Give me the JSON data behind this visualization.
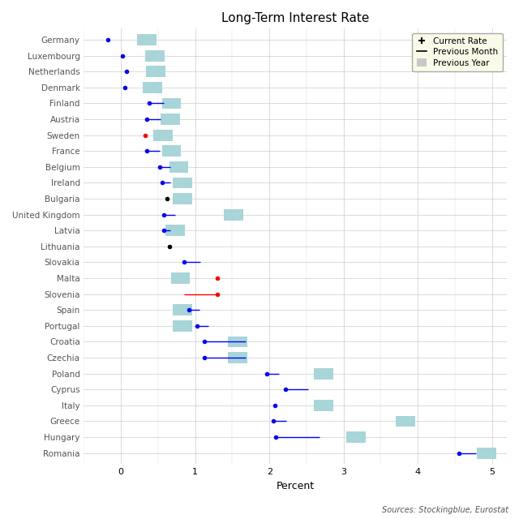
{
  "title": "Long-Term Interest Rate",
  "xlabel": "Percent",
  "source": "Sources: Stockingblue, Eurostat",
  "countries": [
    "Germany",
    "Luxembourg",
    "Netherlands",
    "Denmark",
    "Finland",
    "Austria",
    "Sweden",
    "France",
    "Belgium",
    "Ireland",
    "Bulgaria",
    "United Kingdom",
    "Latvia",
    "Lithuania",
    "Slovakia",
    "Malta",
    "Slovenia",
    "Spain",
    "Portugal",
    "Croatia",
    "Czechia",
    "Poland",
    "Cyprus",
    "Italy",
    "Greece",
    "Hungary",
    "Romania"
  ],
  "current_rate": [
    -0.18,
    0.02,
    0.07,
    0.05,
    0.38,
    0.35,
    0.32,
    0.35,
    0.52,
    0.55,
    0.62,
    0.58,
    0.58,
    0.65,
    0.85,
    1.3,
    1.3,
    0.92,
    1.02,
    1.12,
    1.12,
    1.97,
    2.22,
    2.07,
    2.05,
    2.08,
    4.55
  ],
  "prev_month": [
    -0.18,
    0.02,
    0.07,
    0.05,
    0.58,
    0.53,
    null,
    0.52,
    0.66,
    0.66,
    null,
    0.73,
    0.66,
    null,
    1.07,
    null,
    0.85,
    1.06,
    1.18,
    1.68,
    1.68,
    2.13,
    2.52,
    null,
    2.23,
    2.68,
    4.78
  ],
  "prev_year": [
    0.35,
    0.46,
    0.47,
    0.42,
    0.68,
    0.66,
    0.57,
    0.68,
    0.78,
    0.83,
    0.83,
    1.52,
    0.73,
    null,
    null,
    0.8,
    null,
    0.83,
    0.83,
    1.57,
    1.57,
    2.73,
    null,
    2.73,
    3.83,
    3.17,
    4.93
  ],
  "prev_year_pink": [
    false,
    false,
    false,
    false,
    false,
    false,
    false,
    false,
    false,
    false,
    false,
    false,
    false,
    false,
    true,
    false,
    true,
    false,
    false,
    false,
    false,
    false,
    true,
    false,
    false,
    false,
    false
  ],
  "dot_colors": [
    "blue",
    "blue",
    "blue",
    "blue",
    "blue",
    "blue",
    "red",
    "blue",
    "blue",
    "blue",
    "black",
    "blue",
    "blue",
    "black",
    "blue",
    "red",
    "red",
    "blue",
    "blue",
    "blue",
    "blue",
    "blue",
    "blue",
    "blue",
    "blue",
    "blue",
    "blue"
  ],
  "line_colors": [
    "blue",
    "blue",
    "blue",
    "blue",
    "blue",
    "blue",
    null,
    "blue",
    "blue",
    "blue",
    null,
    "blue",
    "blue",
    null,
    "blue",
    null,
    "red",
    "blue",
    "blue",
    "blue",
    "blue",
    "blue",
    "blue",
    null,
    "blue",
    "blue",
    "blue"
  ],
  "teal_color": "#a8d5d8",
  "pink_color": "#f5b8b8",
  "legend_bg": "#fafae8",
  "label_color": "#555555",
  "xlim": [
    -0.5,
    5.2
  ],
  "xticks": [
    0,
    1,
    2,
    3,
    4,
    5
  ],
  "figsize": [
    6.4,
    6.4
  ],
  "dpi": 100
}
